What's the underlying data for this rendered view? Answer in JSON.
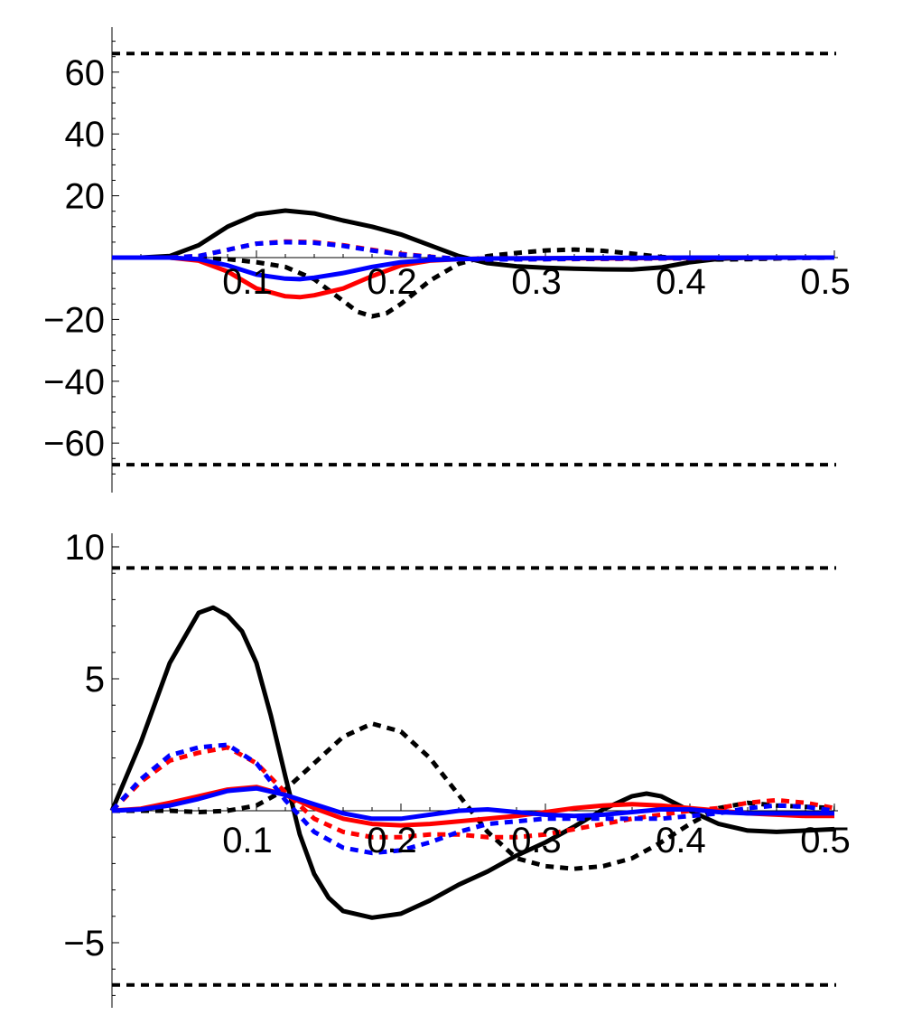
{
  "chart_data": [
    {
      "type": "line",
      "title": "",
      "xlabel": "",
      "ylabel": "",
      "xlim": [
        0,
        0.5
      ],
      "ylim": [
        -72,
        72
      ],
      "x_ticks": [
        0.1,
        0.2,
        0.3,
        0.4,
        0.5
      ],
      "x_tick_labels": [
        "0.1",
        "0.2",
        "0.3",
        "0.4",
        "0.5"
      ],
      "y_ticks": [
        -60,
        -40,
        -20,
        20,
        40,
        60
      ],
      "y_tick_labels": [
        "−60",
        "−40",
        "−20",
        "20",
        "40",
        "60"
      ],
      "grid": false,
      "legend": "none",
      "reference_lines": [
        {
          "y": 66,
          "color": "#000000",
          "style": "dashed"
        },
        {
          "y": -67,
          "color": "#000000",
          "style": "dashed"
        }
      ],
      "series": [
        {
          "color": "#000000",
          "style": "solid",
          "x": [
            0,
            0.02,
            0.04,
            0.06,
            0.08,
            0.1,
            0.12,
            0.14,
            0.16,
            0.18,
            0.2,
            0.22,
            0.24,
            0.26,
            0.28,
            0.3,
            0.32,
            0.34,
            0.36,
            0.38,
            0.4,
            0.42,
            0.44,
            0.46,
            0.48,
            0.5
          ],
          "y": [
            0,
            0,
            0.5,
            4,
            10,
            14,
            15.2,
            14.3,
            12,
            10,
            7.5,
            4,
            0.5,
            -1.8,
            -2.8,
            -3.3,
            -3.6,
            -3.8,
            -3.9,
            -3.2,
            -1.5,
            -0.4,
            0,
            0,
            0,
            0
          ]
        },
        {
          "color": "#000000",
          "style": "dotted",
          "x": [
            0,
            0.04,
            0.06,
            0.08,
            0.1,
            0.12,
            0.14,
            0.16,
            0.17,
            0.18,
            0.19,
            0.2,
            0.22,
            0.24,
            0.26,
            0.28,
            0.3,
            0.32,
            0.34,
            0.36,
            0.38,
            0.4,
            0.42,
            0.44,
            0.46,
            0.48,
            0.5
          ],
          "y": [
            0,
            0,
            -0.2,
            -0.5,
            -1.5,
            -3,
            -7,
            -14,
            -17.5,
            -19,
            -18,
            -15,
            -7.5,
            -2,
            0.5,
            1.5,
            2.3,
            2.6,
            2.2,
            1.3,
            0.2,
            -0.4,
            -0.6,
            -0.5,
            -0.3,
            -0.1,
            0
          ]
        },
        {
          "color": "#ff0000",
          "style": "solid",
          "x": [
            0,
            0.04,
            0.06,
            0.08,
            0.1,
            0.12,
            0.13,
            0.14,
            0.16,
            0.18,
            0.2,
            0.22,
            0.24,
            0.26,
            0.3,
            0.35,
            0.4,
            0.45,
            0.5
          ],
          "y": [
            0,
            0,
            -1,
            -4.5,
            -10,
            -12.5,
            -12.8,
            -12.2,
            -10,
            -6,
            -2.5,
            -1,
            -0.5,
            -0.3,
            -0.2,
            -0.2,
            -0.1,
            0,
            0
          ]
        },
        {
          "color": "#ff0000",
          "style": "dotted",
          "x": [
            0,
            0.04,
            0.06,
            0.08,
            0.1,
            0.12,
            0.14,
            0.16,
            0.18,
            0.2,
            0.22,
            0.24,
            0.26,
            0.3,
            0.35,
            0.4,
            0.45,
            0.5
          ],
          "y": [
            0,
            0,
            0.5,
            2.5,
            4.5,
            5.2,
            5,
            4,
            2.5,
            1.2,
            0.3,
            -0.4,
            -0.6,
            -0.5,
            -0.4,
            -0.2,
            -0.1,
            0
          ]
        },
        {
          "color": "#0000ff",
          "style": "solid",
          "x": [
            0,
            0.04,
            0.06,
            0.08,
            0.1,
            0.12,
            0.13,
            0.14,
            0.16,
            0.18,
            0.2,
            0.22,
            0.24,
            0.26,
            0.3,
            0.35,
            0.4,
            0.45,
            0.5
          ],
          "y": [
            0,
            0,
            -0.5,
            -2.5,
            -5.5,
            -6.8,
            -7,
            -6.5,
            -5,
            -3,
            -1.5,
            -0.8,
            -0.5,
            -0.3,
            -0.2,
            -0.1,
            0,
            0,
            0
          ]
        },
        {
          "color": "#0000ff",
          "style": "dotted",
          "x": [
            0,
            0.04,
            0.06,
            0.08,
            0.1,
            0.12,
            0.14,
            0.16,
            0.18,
            0.2,
            0.22,
            0.24,
            0.26,
            0.3,
            0.35,
            0.4,
            0.45,
            0.5
          ],
          "y": [
            0,
            0,
            0.5,
            2.5,
            4.5,
            5,
            4.8,
            3.8,
            2.3,
            1,
            0.2,
            -0.4,
            -0.6,
            -0.5,
            -0.3,
            -0.2,
            -0.1,
            0
          ]
        }
      ]
    },
    {
      "type": "line",
      "title": "",
      "xlabel": "",
      "ylabel": "",
      "xlim": [
        0,
        0.5
      ],
      "ylim": [
        -7.5,
        10.4
      ],
      "x_ticks": [
        0.1,
        0.2,
        0.3,
        0.4,
        0.5
      ],
      "x_tick_labels": [
        "0.1",
        "0.2",
        "0.3",
        "0.4",
        "0.5"
      ],
      "y_ticks": [
        -5,
        5,
        10
      ],
      "y_tick_labels": [
        "−5",
        "5",
        "10"
      ],
      "grid": false,
      "legend": "none",
      "reference_lines": [
        {
          "y": 9.2,
          "color": "#000000",
          "style": "dashed"
        },
        {
          "y": -6.6,
          "color": "#000000",
          "style": "dashed"
        }
      ],
      "series": [
        {
          "color": "#000000",
          "style": "solid",
          "x": [
            0,
            0.02,
            0.04,
            0.06,
            0.07,
            0.08,
            0.09,
            0.1,
            0.11,
            0.12,
            0.13,
            0.14,
            0.15,
            0.16,
            0.18,
            0.2,
            0.22,
            0.24,
            0.26,
            0.28,
            0.3,
            0.32,
            0.34,
            0.36,
            0.37,
            0.38,
            0.4,
            0.42,
            0.44,
            0.46,
            0.48,
            0.5
          ],
          "y": [
            0,
            2.6,
            5.6,
            7.5,
            7.7,
            7.4,
            6.8,
            5.6,
            3.6,
            1.3,
            -0.9,
            -2.4,
            -3.3,
            -3.8,
            -4.05,
            -3.9,
            -3.4,
            -2.8,
            -2.3,
            -1.7,
            -1.2,
            -0.6,
            0.05,
            0.55,
            0.65,
            0.55,
            0,
            -0.5,
            -0.75,
            -0.8,
            -0.75,
            -0.7
          ]
        },
        {
          "color": "#000000",
          "style": "dotted",
          "x": [
            0,
            0.04,
            0.06,
            0.08,
            0.1,
            0.12,
            0.14,
            0.16,
            0.18,
            0.2,
            0.22,
            0.24,
            0.26,
            0.28,
            0.3,
            0.32,
            0.34,
            0.36,
            0.38,
            0.4,
            0.42,
            0.44,
            0.46,
            0.48,
            0.5
          ],
          "y": [
            0,
            0,
            -0.05,
            0,
            0.2,
            0.8,
            1.8,
            2.8,
            3.3,
            3.0,
            2.0,
            0.6,
            -0.8,
            -1.8,
            -2.1,
            -2.2,
            -2.1,
            -1.8,
            -1.2,
            -0.5,
            0.1,
            0.3,
            0.2,
            0.15,
            0.1
          ]
        },
        {
          "color": "#ff0000",
          "style": "solid",
          "x": [
            0,
            0.02,
            0.04,
            0.06,
            0.08,
            0.1,
            0.12,
            0.14,
            0.16,
            0.18,
            0.2,
            0.22,
            0.24,
            0.26,
            0.28,
            0.3,
            0.32,
            0.34,
            0.36,
            0.38,
            0.4,
            0.42,
            0.44,
            0.46,
            0.48,
            0.5
          ],
          "y": [
            0,
            0.08,
            0.3,
            0.55,
            0.8,
            0.9,
            0.6,
            0.1,
            -0.3,
            -0.5,
            -0.55,
            -0.5,
            -0.4,
            -0.3,
            -0.2,
            -0.05,
            0.1,
            0.2,
            0.25,
            0.2,
            0.1,
            0,
            -0.1,
            -0.15,
            -0.2,
            -0.2
          ]
        },
        {
          "color": "#ff0000",
          "style": "dotted",
          "x": [
            0,
            0.02,
            0.04,
            0.06,
            0.08,
            0.1,
            0.12,
            0.14,
            0.16,
            0.18,
            0.2,
            0.22,
            0.24,
            0.26,
            0.28,
            0.3,
            0.32,
            0.34,
            0.36,
            0.38,
            0.4,
            0.42,
            0.44,
            0.46,
            0.48,
            0.5
          ],
          "y": [
            0,
            1.1,
            1.9,
            2.2,
            2.4,
            1.8,
            0.7,
            -0.3,
            -0.8,
            -1.0,
            -1.0,
            -0.9,
            -0.9,
            -1.0,
            -1.0,
            -0.9,
            -0.7,
            -0.5,
            -0.3,
            -0.15,
            0,
            0.1,
            0.3,
            0.4,
            0.3,
            0.1
          ]
        },
        {
          "color": "#0000ff",
          "style": "solid",
          "x": [
            0,
            0.02,
            0.04,
            0.06,
            0.08,
            0.1,
            0.12,
            0.14,
            0.16,
            0.18,
            0.2,
            0.22,
            0.24,
            0.26,
            0.28,
            0.3,
            0.32,
            0.34,
            0.36,
            0.38,
            0.4,
            0.42,
            0.44,
            0.46,
            0.48,
            0.5
          ],
          "y": [
            0,
            0.05,
            0.2,
            0.45,
            0.75,
            0.85,
            0.6,
            0.25,
            -0.1,
            -0.3,
            -0.3,
            -0.15,
            0,
            0.05,
            -0.05,
            -0.15,
            -0.2,
            -0.15,
            -0.05,
            0.05,
            0.05,
            -0.05,
            -0.1,
            -0.1,
            -0.1,
            -0.1
          ]
        },
        {
          "color": "#0000ff",
          "style": "dotted",
          "x": [
            0,
            0.02,
            0.04,
            0.06,
            0.08,
            0.1,
            0.12,
            0.14,
            0.16,
            0.18,
            0.2,
            0.22,
            0.24,
            0.26,
            0.28,
            0.3,
            0.32,
            0.34,
            0.36,
            0.38,
            0.4,
            0.42,
            0.44,
            0.46,
            0.48,
            0.5
          ],
          "y": [
            0,
            1.2,
            2.1,
            2.4,
            2.5,
            1.8,
            0.4,
            -0.8,
            -1.4,
            -1.6,
            -1.5,
            -1.2,
            -0.8,
            -0.5,
            -0.4,
            -0.3,
            -0.3,
            -0.3,
            -0.3,
            -0.3,
            -0.2,
            -0.1,
            0.1,
            0.2,
            0.15,
            0
          ]
        }
      ]
    }
  ]
}
